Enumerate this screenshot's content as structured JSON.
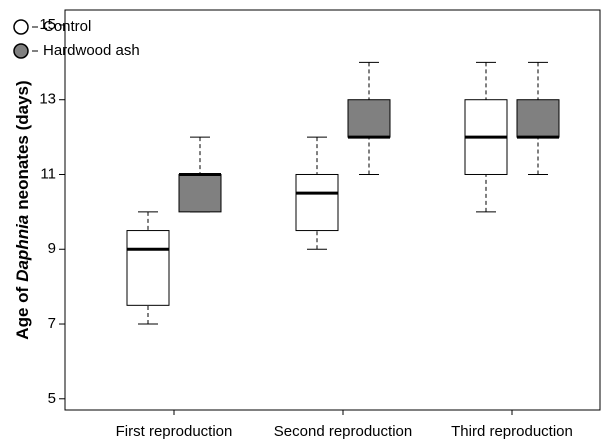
{
  "chart_data": {
    "type": "box",
    "y_label_parts": [
      "Age of",
      "Daphnia",
      "neonates (days)"
    ],
    "categories": [
      "First reproduction",
      "Second reproduction",
      "Third reproduction"
    ],
    "series": [
      {
        "name": "Control",
        "color": "#ffffff",
        "boxes": [
          {
            "min": 7,
            "q1": 7.5,
            "median": 9,
            "q3": 9.5,
            "max": 10
          },
          {
            "min": 9,
            "q1": 9.5,
            "median": 10.5,
            "q3": 11,
            "max": 12
          },
          {
            "min": 10,
            "q1": 11,
            "median": 12,
            "q3": 13,
            "max": 14
          }
        ]
      },
      {
        "name": "Hardwood ash",
        "color": "#808080",
        "boxes": [
          {
            "min": 10,
            "q1": 10,
            "median": 11,
            "q3": 11,
            "max": 12
          },
          {
            "min": 11,
            "q1": 12,
            "median": 12,
            "q3": 13,
            "max": 14
          },
          {
            "min": 11,
            "q1": 12,
            "median": 12,
            "q3": 13,
            "max": 14
          }
        ]
      }
    ],
    "ylim": [
      4.7,
      15.4
    ],
    "yticks": [
      5,
      7,
      9,
      11,
      13,
      15
    ]
  }
}
